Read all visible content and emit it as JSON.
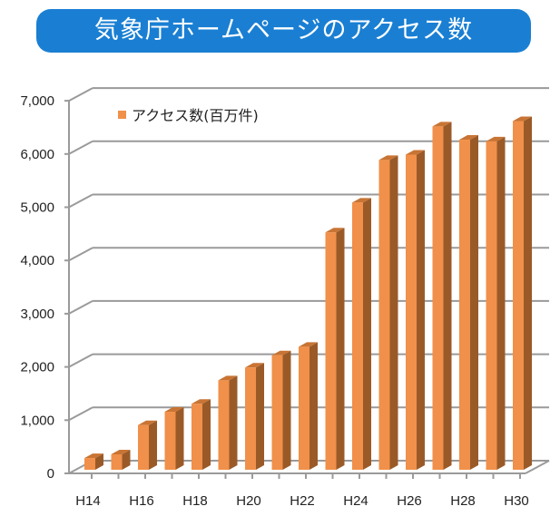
{
  "chart_data": {
    "type": "bar",
    "title": "気象庁ホームページのアクセス数",
    "categories": [
      "H14",
      "H15",
      "H16",
      "H17",
      "H18",
      "H19",
      "H20",
      "H21",
      "H22",
      "H23",
      "H24",
      "H25",
      "H26",
      "H27",
      "H28",
      "H29",
      "H30"
    ],
    "x_tick_labels": [
      "H14",
      "H16",
      "H18",
      "H20",
      "H22",
      "H24",
      "H26",
      "H28",
      "H30"
    ],
    "series": [
      {
        "name": "アクセス数(百万件)",
        "values": [
          220,
          290,
          840,
          1090,
          1240,
          1680,
          1920,
          2150,
          2310,
          4460,
          5020,
          5820,
          5920,
          6450,
          6200,
          6170,
          6550
        ]
      }
    ],
    "y_tick_labels": [
      "0",
      "1,000",
      "2,000",
      "3,000",
      "4,000",
      "5,000",
      "6,000",
      "7,000"
    ],
    "ylim": [
      0,
      7000
    ],
    "grid": true,
    "three_d": true,
    "legend_position": "top-left",
    "colors": {
      "bar_front": "#f0904a",
      "bar_side": "#9a5a28",
      "bar_top": "#c87434",
      "title_bg": "#1a7fd3"
    }
  }
}
